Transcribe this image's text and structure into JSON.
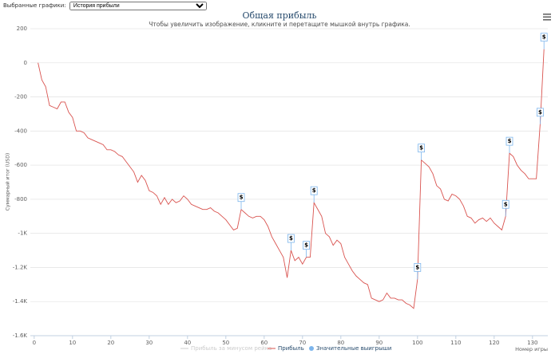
{
  "selector": {
    "label": "Выбранные графики:",
    "selected": "История прибыли"
  },
  "chart_data": {
    "type": "line",
    "title": "Общая прибыль",
    "subtitle": "Чтобы увеличить изображение, кликните и перетащите мышкой внутрь графика.",
    "y_label": "Суммарный итог (USD)",
    "x_label": "Номер игры",
    "xlim": [
      -1,
      134
    ],
    "xticks": [
      0,
      10,
      20,
      30,
      40,
      50,
      60,
      70,
      80,
      90,
      100,
      110,
      120,
      130
    ],
    "ylim": [
      -1600,
      200
    ],
    "yticks": [
      200,
      0,
      -200,
      -400,
      -600,
      -800,
      {
        "value": -1000,
        "label": "-1K"
      },
      {
        "value": -1200,
        "label": "-1.2K"
      },
      {
        "value": -1400,
        "label": "-1.4K"
      },
      {
        "value": -1600,
        "label": "-1.6K"
      }
    ],
    "grid": true,
    "hidden_series": [
      {
        "name": "Прибыль за минусом рейка",
        "color": "#cccccc"
      }
    ],
    "series": [
      {
        "name": "Прибыль",
        "color": "#d9534f",
        "x": [
          1,
          2,
          3,
          4,
          5,
          6,
          7,
          8,
          9,
          10,
          11,
          12,
          13,
          14,
          15,
          16,
          17,
          18,
          19,
          20,
          21,
          22,
          23,
          24,
          25,
          26,
          27,
          28,
          29,
          30,
          31,
          32,
          33,
          34,
          35,
          36,
          37,
          38,
          39,
          40,
          41,
          42,
          43,
          44,
          45,
          46,
          47,
          48,
          49,
          50,
          51,
          52,
          53,
          54,
          55,
          56,
          57,
          58,
          59,
          60,
          61,
          62,
          63,
          64,
          65,
          66,
          67,
          68,
          69,
          70,
          71,
          72,
          73,
          74,
          75,
          76,
          77,
          78,
          79,
          80,
          81,
          82,
          83,
          84,
          85,
          86,
          87,
          88,
          89,
          90,
          91,
          92,
          93,
          94,
          95,
          96,
          97,
          98,
          99,
          100,
          101,
          102,
          103,
          104,
          105,
          106,
          107,
          108,
          109,
          110,
          111,
          112,
          113,
          114,
          115,
          116,
          117,
          118,
          119,
          120,
          121,
          122,
          123,
          124,
          125,
          126,
          127,
          128,
          129,
          130,
          131,
          132,
          133
        ],
        "values": [
          0,
          -100,
          -140,
          -250,
          -260,
          -270,
          -230,
          -230,
          -290,
          -320,
          -400,
          -400,
          -410,
          -440,
          -450,
          -460,
          -470,
          -480,
          -510,
          -510,
          -520,
          -540,
          -550,
          -580,
          -610,
          -640,
          -700,
          -660,
          -690,
          -750,
          -760,
          -780,
          -830,
          -790,
          -830,
          -800,
          -820,
          -810,
          -780,
          -800,
          -830,
          -840,
          -850,
          -860,
          -860,
          -850,
          -870,
          -880,
          -900,
          -920,
          -950,
          -980,
          -970,
          -860,
          -880,
          -900,
          -910,
          -900,
          -900,
          -920,
          -960,
          -1020,
          -1060,
          -1100,
          -1140,
          -1260,
          -1100,
          -1160,
          -1140,
          -1180,
          -1140,
          -1140,
          -820,
          -860,
          -900,
          -1000,
          -1020,
          -1070,
          -1040,
          -1060,
          -1140,
          -1180,
          -1220,
          -1250,
          -1270,
          -1290,
          -1300,
          -1380,
          -1390,
          -1400,
          -1390,
          -1350,
          -1380,
          -1380,
          -1390,
          -1390,
          -1410,
          -1420,
          -1440,
          -1270,
          -570,
          -590,
          -610,
          -650,
          -720,
          -740,
          -800,
          -810,
          -770,
          -780,
          -800,
          -840,
          -900,
          -910,
          -940,
          -920,
          -910,
          -930,
          -910,
          -940,
          -960,
          -980,
          -900,
          -530,
          -550,
          -600,
          -630,
          -650,
          -680,
          -680,
          -680,
          -360,
          80
        ]
      },
      {
        "name": "Значительные выигрыши",
        "color": "#7cb5ec",
        "marker_label": "$",
        "x": [
          54,
          67,
          71,
          73,
          100,
          101,
          123,
          124,
          132,
          133
        ],
        "values": [
          -860,
          -1100,
          -1140,
          -820,
          -1270,
          -570,
          -900,
          -530,
          -360,
          80
        ]
      }
    ]
  }
}
